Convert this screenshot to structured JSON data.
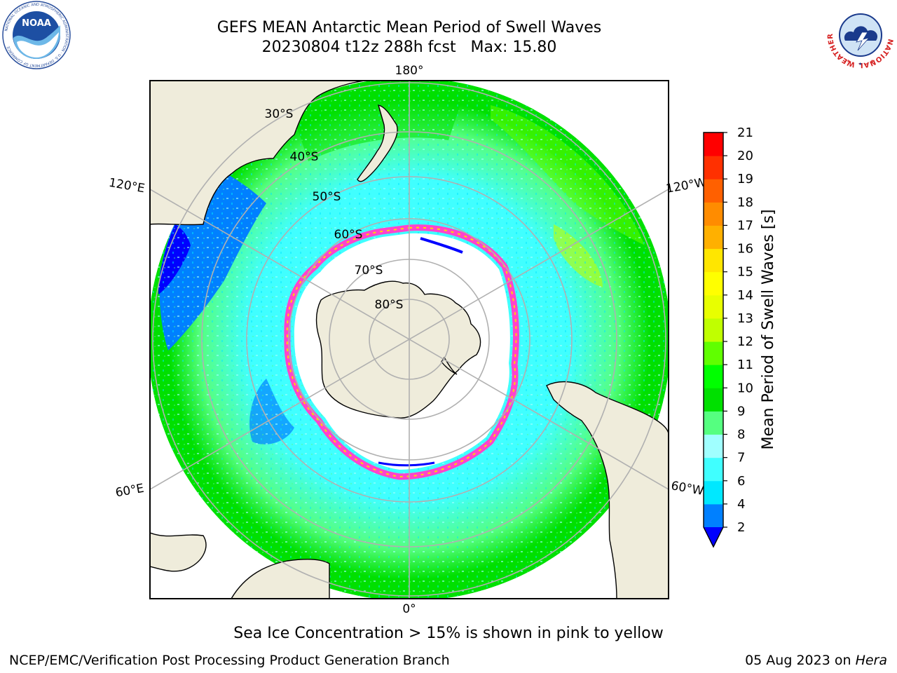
{
  "header": {
    "title_line1": "GEFS MEAN Antarctic Mean Period of Swell Waves",
    "title_line2": "20230804 t12z 288h fcst   Max: 15.80"
  },
  "logos": {
    "left": "NOAA",
    "left_ring": "NATIONAL OCEANIC AND ATMOSPHERIC ADMINISTRATION · U.S. DEPARTMENT OF COMMERCE",
    "right_ring": "NATIONAL WEATHER SERVICE"
  },
  "map": {
    "projection": "south-polar-stereographic",
    "latitude_labels": [
      "30°S",
      "40°S",
      "50°S",
      "60°S",
      "70°S",
      "80°S"
    ],
    "longitude_labels": {
      "top": "180°",
      "bottom": "0°",
      "upper_left": "120°E",
      "lower_left": "60°E",
      "upper_right": "120°W",
      "lower_right": "60°W"
    },
    "colors": {
      "land": "#efecdb",
      "ocean_no_data": "#ffffff",
      "grid": "#b0b0b0",
      "sea_ice_edge_pink": "#ff44cc",
      "sea_ice_edge_yellow": "#ffd700"
    }
  },
  "colorbar": {
    "label": "Mean Period of Swell Waves [s]",
    "extend": "min",
    "ticks": [
      "2",
      "4",
      "6",
      "7",
      "8",
      "9",
      "10",
      "11",
      "12",
      "13",
      "14",
      "15",
      "16",
      "17",
      "18",
      "19",
      "20",
      "21"
    ],
    "bins": [
      {
        "from": 2,
        "to": 4,
        "color": "#0080ff"
      },
      {
        "from": 4,
        "to": 6,
        "color": "#00e8ff"
      },
      {
        "from": 6,
        "to": 7,
        "color": "#40ffff"
      },
      {
        "from": 7,
        "to": 8,
        "color": "#a0ffff"
      },
      {
        "from": 8,
        "to": 9,
        "color": "#55ff80"
      },
      {
        "from": 9,
        "to": 10,
        "color": "#00e000"
      },
      {
        "from": 10,
        "to": 11,
        "color": "#00ff00"
      },
      {
        "from": 11,
        "to": 12,
        "color": "#60ff00"
      },
      {
        "from": 12,
        "to": 13,
        "color": "#c0ff00"
      },
      {
        "from": 13,
        "to": 14,
        "color": "#e8ff00"
      },
      {
        "from": 14,
        "to": 15,
        "color": "#ffff00"
      },
      {
        "from": 15,
        "to": 16,
        "color": "#ffe600"
      },
      {
        "from": 16,
        "to": 17,
        "color": "#ffb000"
      },
      {
        "from": 17,
        "to": 18,
        "color": "#ff8c00"
      },
      {
        "from": 18,
        "to": 19,
        "color": "#ff6000"
      },
      {
        "from": 19,
        "to": 20,
        "color": "#ff3000"
      },
      {
        "from": 20,
        "to": 21,
        "color": "#ff0000"
      }
    ],
    "under_color": "#0000ff"
  },
  "footer": {
    "note": "Sea Ice Concentration > 15% is shown in pink to yellow",
    "credit": "NCEP/EMC/Verification Post Processing Product Generation Branch",
    "date": "05 Aug 2023 on ",
    "host": "Hera"
  }
}
